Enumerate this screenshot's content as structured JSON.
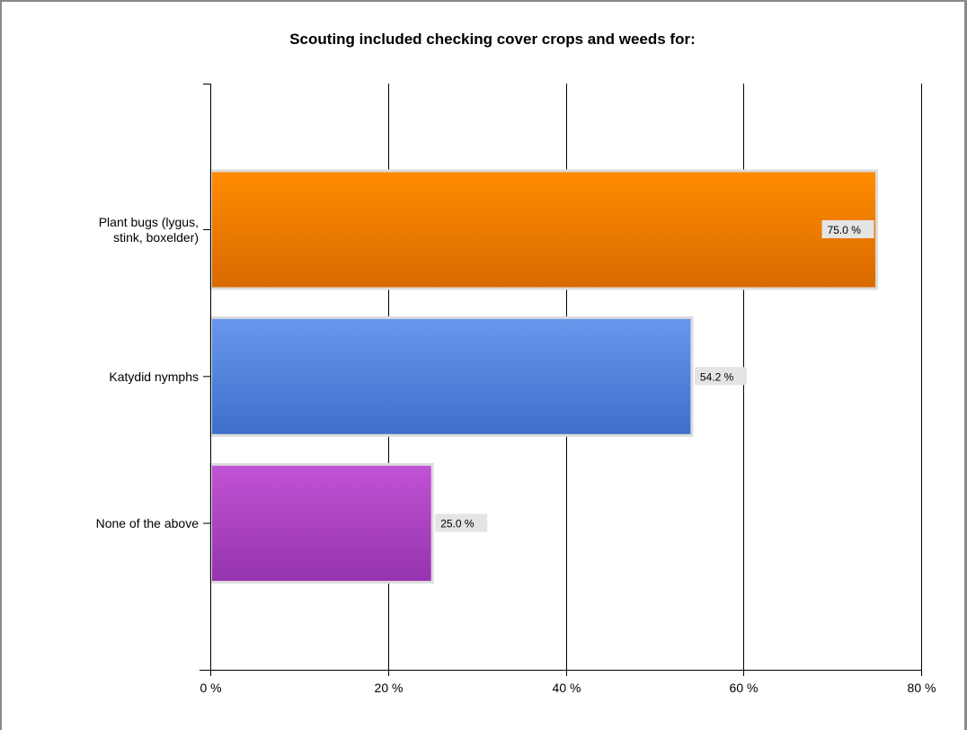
{
  "chart_data": {
    "type": "bar",
    "orientation": "horizontal",
    "title": "Scouting included checking cover crops and weeds for:",
    "categories": [
      [
        "Plant bugs (lygus,",
        "stink, boxelder)"
      ],
      [
        "Katydid nymphs"
      ],
      [
        "None of the above"
      ]
    ],
    "values": [
      75.0,
      54.2,
      25.0
    ],
    "value_labels": [
      "75.0 %",
      "54.2 %",
      "25.0 %"
    ],
    "xlim": [
      0,
      80
    ],
    "xticks": [
      0,
      20,
      40,
      60,
      80
    ],
    "xtick_labels": [
      "0 %",
      "20 %",
      "40 %",
      "60 %",
      "80 %"
    ],
    "grid": true,
    "colors": [
      {
        "top": "#ff8c00",
        "bottom": "#d96a00"
      },
      {
        "top": "#6798ec",
        "bottom": "#3d6fcb"
      },
      {
        "top": "#c253d6",
        "bottom": "#9533ae"
      }
    ]
  }
}
